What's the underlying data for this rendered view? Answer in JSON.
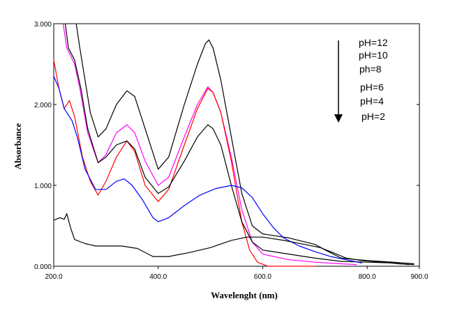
{
  "chart_data": {
    "type": "line",
    "title": "",
    "xlabel": "Wavelenght (nm)",
    "ylabel": "Absorbance",
    "xlim": [
      200,
      900
    ],
    "ylim": [
      0,
      3
    ],
    "x_ticks": [
      {
        "value": 200,
        "label": "200.0"
      },
      {
        "value": 400,
        "label": "400.0"
      },
      {
        "value": 600,
        "label": "600.0"
      },
      {
        "value": 800,
        "label": "800.0"
      },
      {
        "value": 900,
        "label": "900.0"
      }
    ],
    "y_ticks": [
      {
        "value": 0,
        "label": "0.000"
      },
      {
        "value": 1,
        "label": "1.000"
      },
      {
        "value": 2,
        "label": "2.000"
      },
      {
        "value": 3,
        "label": "3.000"
      }
    ],
    "grid": false,
    "legend_placement": "top-right",
    "legend_labels": [
      "pH=12",
      "pH=10",
      "ph=8",
      "pH=6",
      "pH=4",
      "pH=2"
    ],
    "legend_arrow": "down",
    "series": [
      {
        "color": "#000000",
        "points": [
          [
            243,
            3.0
          ],
          [
            250,
            2.7
          ],
          [
            270,
            1.9
          ],
          [
            285,
            1.6
          ],
          [
            300,
            1.7
          ],
          [
            320,
            2.0
          ],
          [
            340,
            2.17
          ],
          [
            355,
            2.1
          ],
          [
            375,
            1.7
          ],
          [
            400,
            1.2
          ],
          [
            420,
            1.35
          ],
          [
            450,
            2.0
          ],
          [
            475,
            2.5
          ],
          [
            490,
            2.75
          ],
          [
            497,
            2.8
          ],
          [
            505,
            2.7
          ],
          [
            520,
            2.3
          ],
          [
            540,
            1.6
          ],
          [
            560,
            0.9
          ],
          [
            580,
            0.5
          ],
          [
            600,
            0.4
          ],
          [
            650,
            0.35
          ],
          [
            700,
            0.27
          ],
          [
            720,
            0.2
          ],
          [
            750,
            0.1
          ],
          [
            800,
            0.07
          ],
          [
            850,
            0.05
          ],
          [
            890,
            0.03
          ]
        ]
      },
      {
        "color": "#ff00ff",
        "points": [
          [
            218,
            3.0
          ],
          [
            225,
            2.7
          ],
          [
            240,
            2.5
          ],
          [
            250,
            2.2
          ],
          [
            265,
            1.65
          ],
          [
            285,
            1.28
          ],
          [
            300,
            1.38
          ],
          [
            320,
            1.65
          ],
          [
            340,
            1.75
          ],
          [
            355,
            1.65
          ],
          [
            375,
            1.3
          ],
          [
            400,
            1.0
          ],
          [
            420,
            1.1
          ],
          [
            450,
            1.6
          ],
          [
            475,
            2.0
          ],
          [
            495,
            2.22
          ],
          [
            505,
            2.15
          ],
          [
            520,
            1.9
          ],
          [
            540,
            1.35
          ],
          [
            560,
            0.7
          ],
          [
            580,
            0.3
          ],
          [
            600,
            0.15
          ],
          [
            650,
            0.08
          ],
          [
            700,
            0.05
          ],
          [
            750,
            0.03
          ],
          [
            780,
            0.02
          ]
        ]
      },
      {
        "color": "#ff0000",
        "points": [
          [
            200,
            2.55
          ],
          [
            210,
            2.2
          ],
          [
            220,
            1.95
          ],
          [
            230,
            2.05
          ],
          [
            240,
            1.85
          ],
          [
            255,
            1.35
          ],
          [
            270,
            1.05
          ],
          [
            285,
            0.88
          ],
          [
            300,
            1.05
          ],
          [
            320,
            1.35
          ],
          [
            340,
            1.55
          ],
          [
            355,
            1.42
          ],
          [
            375,
            1.0
          ],
          [
            400,
            0.8
          ],
          [
            420,
            0.95
          ],
          [
            450,
            1.5
          ],
          [
            475,
            1.95
          ],
          [
            495,
            2.2
          ],
          [
            505,
            2.15
          ],
          [
            520,
            1.9
          ],
          [
            540,
            1.3
          ],
          [
            560,
            0.55
          ],
          [
            575,
            0.2
          ],
          [
            590,
            0.05
          ],
          [
            610,
            0.0
          ],
          [
            700,
            0.0
          ]
        ]
      },
      {
        "color": "#000000",
        "points": [
          [
            222,
            3.0
          ],
          [
            228,
            2.7
          ],
          [
            240,
            2.55
          ],
          [
            252,
            2.2
          ],
          [
            265,
            1.7
          ],
          [
            285,
            1.28
          ],
          [
            300,
            1.35
          ],
          [
            320,
            1.5
          ],
          [
            340,
            1.55
          ],
          [
            355,
            1.45
          ],
          [
            375,
            1.1
          ],
          [
            400,
            0.9
          ],
          [
            420,
            0.98
          ],
          [
            450,
            1.3
          ],
          [
            475,
            1.6
          ],
          [
            495,
            1.75
          ],
          [
            505,
            1.7
          ],
          [
            520,
            1.5
          ],
          [
            540,
            1.0
          ],
          [
            560,
            0.55
          ],
          [
            580,
            0.3
          ],
          [
            600,
            0.2
          ],
          [
            650,
            0.15
          ],
          [
            700,
            0.1
          ],
          [
            750,
            0.06
          ],
          [
            800,
            0.05
          ],
          [
            850,
            0.04
          ],
          [
            880,
            0.02
          ]
        ]
      },
      {
        "color": "#0000ff",
        "points": [
          [
            200,
            2.35
          ],
          [
            210,
            2.2
          ],
          [
            220,
            1.95
          ],
          [
            235,
            1.8
          ],
          [
            245,
            1.6
          ],
          [
            260,
            1.2
          ],
          [
            280,
            0.95
          ],
          [
            300,
            0.95
          ],
          [
            320,
            1.05
          ],
          [
            335,
            1.08
          ],
          [
            350,
            1.0
          ],
          [
            370,
            0.82
          ],
          [
            390,
            0.6
          ],
          [
            400,
            0.55
          ],
          [
            420,
            0.6
          ],
          [
            450,
            0.75
          ],
          [
            480,
            0.88
          ],
          [
            510,
            0.96
          ],
          [
            540,
            1.0
          ],
          [
            560,
            0.97
          ],
          [
            580,
            0.85
          ],
          [
            600,
            0.65
          ],
          [
            620,
            0.48
          ],
          [
            640,
            0.35
          ],
          [
            670,
            0.25
          ],
          [
            700,
            0.18
          ],
          [
            730,
            0.12
          ],
          [
            760,
            0.08
          ],
          [
            790,
            0.04
          ]
        ]
      },
      {
        "color": "#000000",
        "points": [
          [
            200,
            0.57
          ],
          [
            212,
            0.6
          ],
          [
            220,
            0.58
          ],
          [
            225,
            0.65
          ],
          [
            232,
            0.48
          ],
          [
            240,
            0.33
          ],
          [
            260,
            0.28
          ],
          [
            280,
            0.25
          ],
          [
            300,
            0.25
          ],
          [
            330,
            0.25
          ],
          [
            360,
            0.22
          ],
          [
            390,
            0.12
          ],
          [
            420,
            0.12
          ],
          [
            460,
            0.17
          ],
          [
            500,
            0.23
          ],
          [
            540,
            0.32
          ],
          [
            570,
            0.36
          ],
          [
            600,
            0.36
          ],
          [
            640,
            0.32
          ],
          [
            680,
            0.27
          ],
          [
            710,
            0.23
          ],
          [
            730,
            0.18
          ],
          [
            760,
            0.1
          ],
          [
            790,
            0.07
          ],
          [
            830,
            0.05
          ],
          [
            860,
            0.03
          ],
          [
            890,
            0.02
          ]
        ]
      }
    ]
  }
}
